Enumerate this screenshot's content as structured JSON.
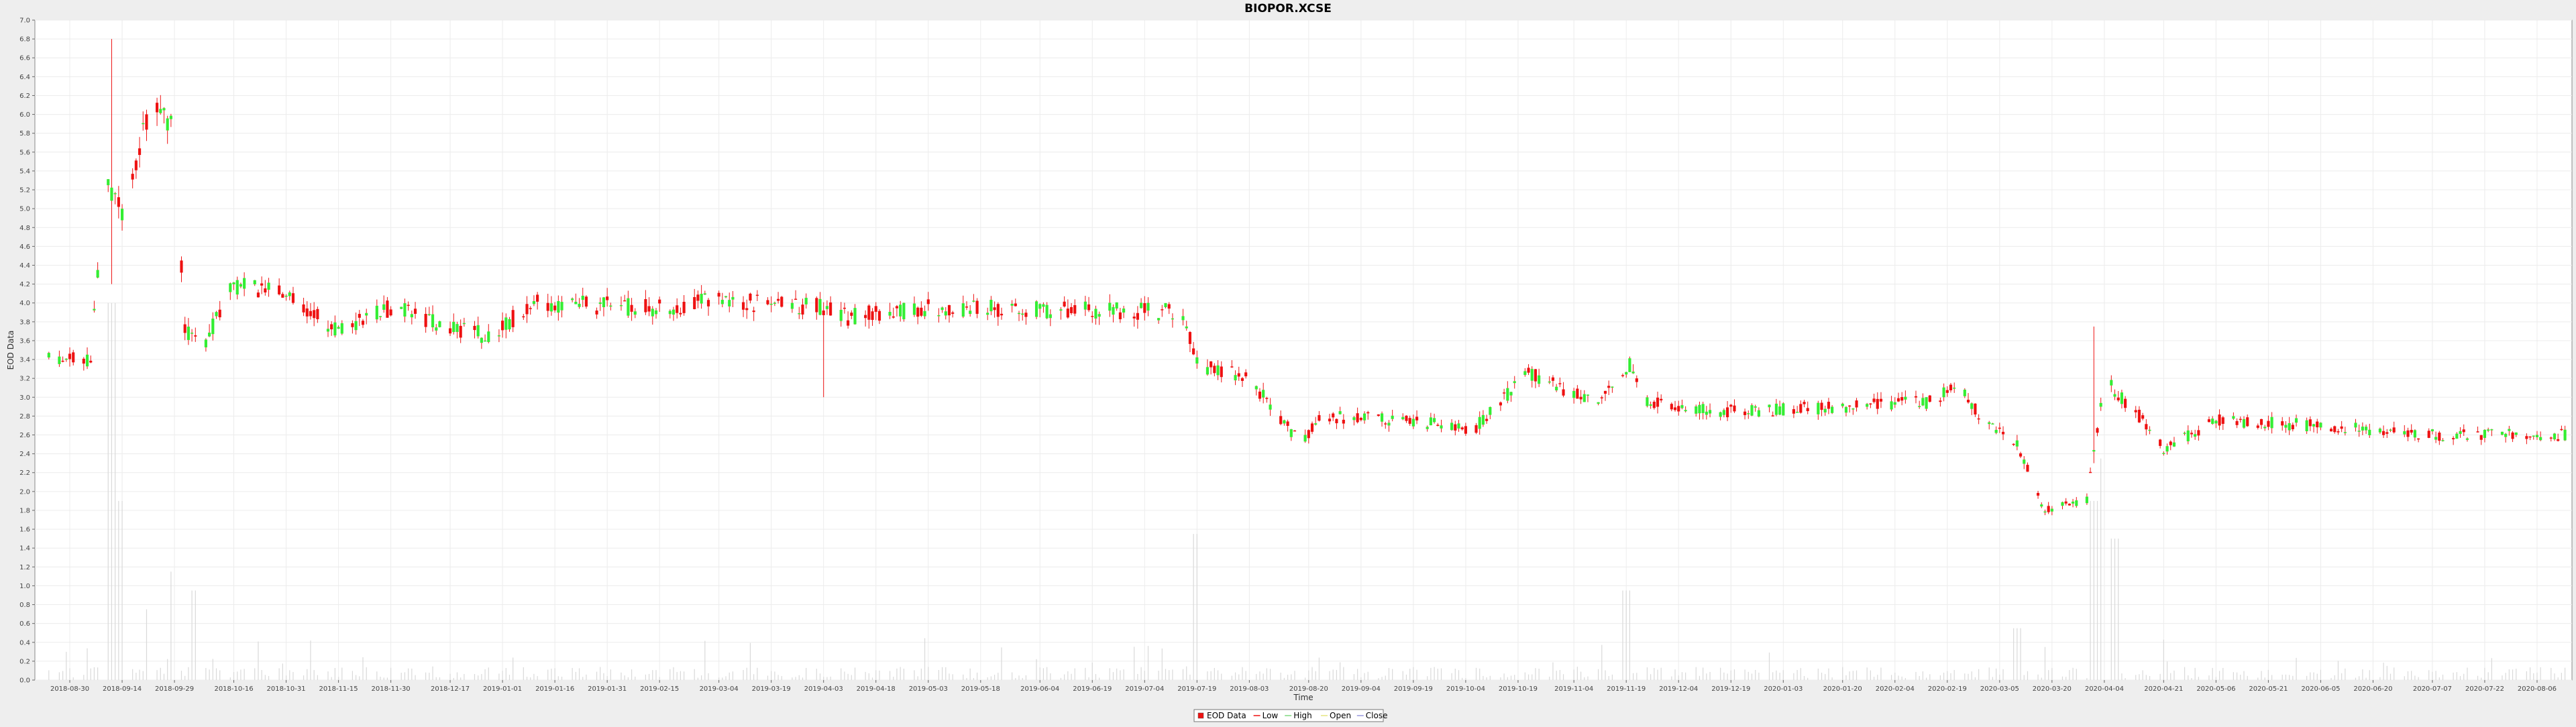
{
  "chart_data": {
    "type": "candlestick",
    "title": "BIOPOR.XCSE",
    "xlabel": "Time",
    "ylabel": "EOD Data",
    "ylim": [
      0,
      7.0
    ],
    "yticks": [
      "0.0",
      "0.2",
      "0.4",
      "0.6",
      "0.8",
      "1.0",
      "1.2",
      "1.4",
      "1.6",
      "1.8",
      "2.0",
      "2.2",
      "2.4",
      "2.6",
      "2.8",
      "3.0",
      "3.2",
      "3.4",
      "3.6",
      "3.8",
      "4.0",
      "4.2",
      "4.4",
      "4.6",
      "4.8",
      "5.0",
      "5.2",
      "5.4",
      "5.6",
      "5.8",
      "6.0",
      "6.2",
      "6.4",
      "6.6",
      "6.8",
      "7.0"
    ],
    "xrange": [
      "2018-08-20",
      "2020-08-16"
    ],
    "xticks": [
      "2018-08-30",
      "2018-09-14",
      "2018-09-29",
      "2018-10-16",
      "2018-10-31",
      "2018-11-15",
      "2018-11-30",
      "2018-12-17",
      "2019-01-01",
      "2019-01-16",
      "2019-01-31",
      "2019-02-15",
      "2019-03-04",
      "2019-03-19",
      "2019-04-03",
      "2019-04-18",
      "2019-05-03",
      "2019-05-18",
      "2019-06-04",
      "2019-06-19",
      "2019-07-04",
      "2019-07-19",
      "2019-08-03",
      "2019-08-20",
      "2019-09-04",
      "2019-09-19",
      "2019-10-04",
      "2019-10-19",
      "2019-11-04",
      "2019-11-19",
      "2019-12-04",
      "2019-12-19",
      "2020-01-03",
      "2020-01-20",
      "2020-02-04",
      "2020-02-19",
      "2020-03-05",
      "2020-03-20",
      "2020-04-04",
      "2020-04-21",
      "2020-05-06",
      "2020-05-21",
      "2020-06-05",
      "2020-06-20",
      "2020-07-07",
      "2020-07-22",
      "2020-08-06"
    ],
    "grid": true,
    "legend_position": "bottom",
    "legend": [
      "EOD Data",
      "Low",
      "High",
      "Open",
      "Close"
    ],
    "colors": {
      "up": "#33ee33",
      "down": "#ee1111",
      "wick": "#ee1111",
      "volume": "#d9d9d9",
      "plot_bg": "#ffffff",
      "grid": "#ececec"
    },
    "series_keyframes": [
      [
        "2018-08-20",
        3.42
      ],
      [
        "2018-09-05",
        3.4
      ],
      [
        "2018-09-09",
        5.3
      ],
      [
        "2018-09-14",
        5.0
      ],
      [
        "2018-09-20",
        5.8
      ],
      [
        "2018-09-25",
        6.1
      ],
      [
        "2018-09-29",
        5.85
      ],
      [
        "2018-10-02",
        3.7
      ],
      [
        "2018-10-08",
        3.6
      ],
      [
        "2018-10-16",
        4.2
      ],
      [
        "2018-10-31",
        4.1
      ],
      [
        "2018-11-15",
        3.7
      ],
      [
        "2018-11-30",
        3.95
      ],
      [
        "2018-12-17",
        3.75
      ],
      [
        "2018-12-28",
        3.65
      ],
      [
        "2019-01-10",
        4.0
      ],
      [
        "2019-02-15",
        3.95
      ],
      [
        "2019-03-04",
        4.02
      ],
      [
        "2019-04-03",
        3.95
      ],
      [
        "2019-04-10",
        3.85
      ],
      [
        "2019-05-03",
        3.95
      ],
      [
        "2019-07-15",
        3.9
      ],
      [
        "2019-07-19",
        3.35
      ],
      [
        "2019-08-03",
        3.2
      ],
      [
        "2019-08-18",
        2.5
      ],
      [
        "2019-08-23",
        2.8
      ],
      [
        "2019-09-19",
        2.75
      ],
      [
        "2019-10-06",
        2.65
      ],
      [
        "2019-10-22",
        3.25
      ],
      [
        "2019-11-10",
        2.95
      ],
      [
        "2019-11-20",
        3.35
      ],
      [
        "2019-11-24",
        2.95
      ],
      [
        "2019-12-19",
        2.85
      ],
      [
        "2020-01-20",
        2.9
      ],
      [
        "2020-02-15",
        2.95
      ],
      [
        "2020-02-22",
        3.2
      ],
      [
        "2020-02-28",
        2.8
      ],
      [
        "2020-03-10",
        2.5
      ],
      [
        "2020-03-18",
        1.8
      ],
      [
        "2020-03-30",
        1.9
      ],
      [
        "2020-04-04",
        3.2
      ],
      [
        "2020-04-14",
        2.8
      ],
      [
        "2020-04-21",
        2.45
      ],
      [
        "2020-05-06",
        2.75
      ],
      [
        "2020-06-05",
        2.7
      ],
      [
        "2020-07-07",
        2.6
      ],
      [
        "2020-08-16",
        2.6
      ]
    ],
    "spikes": [
      {
        "date": "2018-09-11",
        "high": 6.8,
        "low": 4.2
      },
      {
        "date": "2019-04-03",
        "high": 3.9,
        "low": 3.0
      },
      {
        "date": "2020-04-01",
        "high": 3.75,
        "low": 2.3
      }
    ],
    "volume_peaks": [
      [
        "2018-09-09",
        2.2
      ],
      [
        "2018-09-11",
        4.0
      ],
      [
        "2018-09-13",
        1.9
      ],
      [
        "2018-09-22",
        0.75
      ],
      [
        "2018-09-29",
        1.15
      ],
      [
        "2018-10-05",
        0.95
      ],
      [
        "2019-07-19",
        1.55
      ],
      [
        "2019-11-19",
        0.95
      ],
      [
        "2020-03-10",
        0.55
      ],
      [
        "2020-04-01",
        1.9
      ],
      [
        "2020-04-04",
        2.35
      ],
      [
        "2020-04-07",
        1.5
      ]
    ]
  }
}
